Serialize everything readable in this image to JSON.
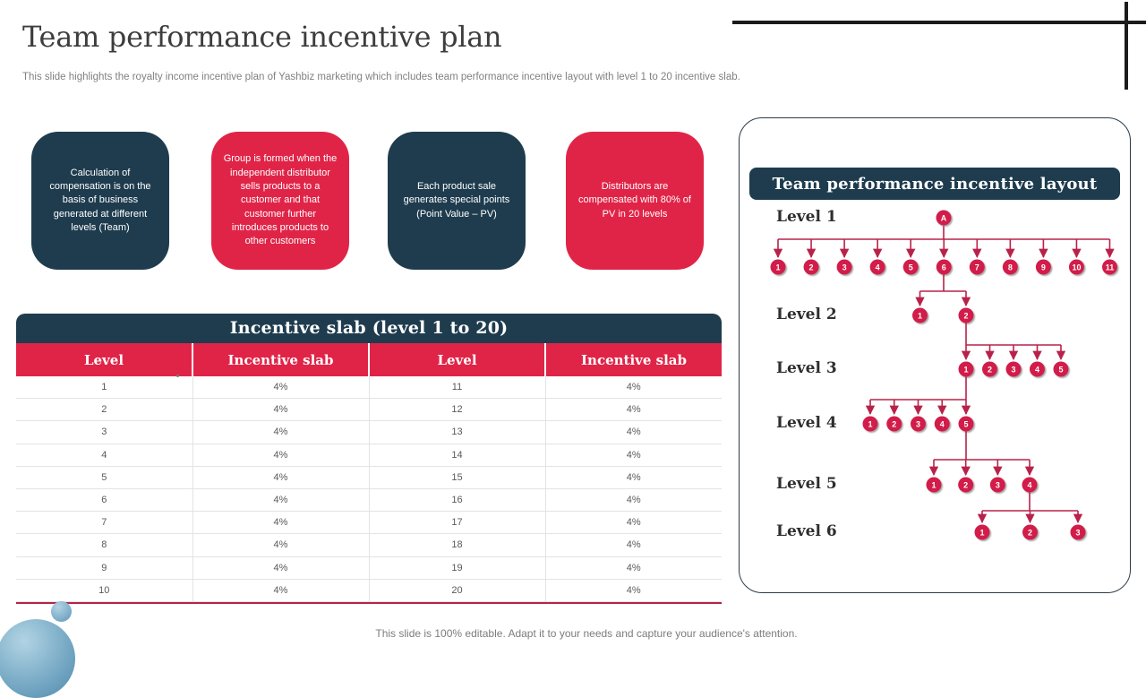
{
  "slide": {
    "title": "Team performance incentive plan",
    "subtitle": "This slide highlights the royalty income incentive plan of Yashbiz marketing which includes team performance incentive layout with level 1 to 20 incentive slab.",
    "footer": "This slide is 100% editable. Adapt it to your needs and capture your audience's attention."
  },
  "info_boxes": [
    {
      "variant": "dark",
      "text": "Calculation of compensation is on the basis of business generated at different levels (Team)"
    },
    {
      "variant": "red",
      "text": "Group is formed when the independent distributor sells products to a customer and that customer further introduces products to other customers"
    },
    {
      "variant": "dark",
      "text": "Each product sale generates special points (Point Value – PV)"
    },
    {
      "variant": "red",
      "text": "Distributors are compensated with 80% of PV in 20 levels"
    }
  ],
  "table": {
    "title": "Incentive slab (level 1 to 20)",
    "headers": [
      "Level",
      "Incentive slab",
      "Level",
      "Incentive slab"
    ],
    "rows": [
      [
        "1",
        "4%",
        "11",
        "4%"
      ],
      [
        "2",
        "4%",
        "12",
        "4%"
      ],
      [
        "3",
        "4%",
        "13",
        "4%"
      ],
      [
        "4",
        "4%",
        "14",
        "4%"
      ],
      [
        "5",
        "4%",
        "15",
        "4%"
      ],
      [
        "6",
        "4%",
        "16",
        "4%"
      ],
      [
        "7",
        "4%",
        "17",
        "4%"
      ],
      [
        "8",
        "4%",
        "18",
        "4%"
      ],
      [
        "9",
        "4%",
        "19",
        "4%"
      ],
      [
        "10",
        "4%",
        "20",
        "4%"
      ]
    ]
  },
  "diagram": {
    "title": "Team performance incentive layout",
    "root": "A",
    "levels": [
      {
        "label": "Level 1",
        "nodes": [
          "1",
          "2",
          "3",
          "4",
          "5",
          "6",
          "7",
          "8",
          "9",
          "10",
          "11"
        ]
      },
      {
        "label": "Level 2",
        "nodes": [
          "1",
          "2"
        ]
      },
      {
        "label": "Level 3",
        "nodes": [
          "1",
          "2",
          "3",
          "4",
          "5"
        ]
      },
      {
        "label": "Level 4",
        "nodes": [
          "1",
          "2",
          "3",
          "4",
          "5"
        ]
      },
      {
        "label": "Level 5",
        "nodes": [
          "1",
          "2",
          "3",
          "4"
        ]
      },
      {
        "label": "Level 6",
        "nodes": [
          "1",
          "2",
          "3"
        ]
      }
    ]
  },
  "colors": {
    "dark": "#1e3c4e",
    "red": "#e02447",
    "node_red": "#d21c4a",
    "line_red": "#b8224a"
  }
}
